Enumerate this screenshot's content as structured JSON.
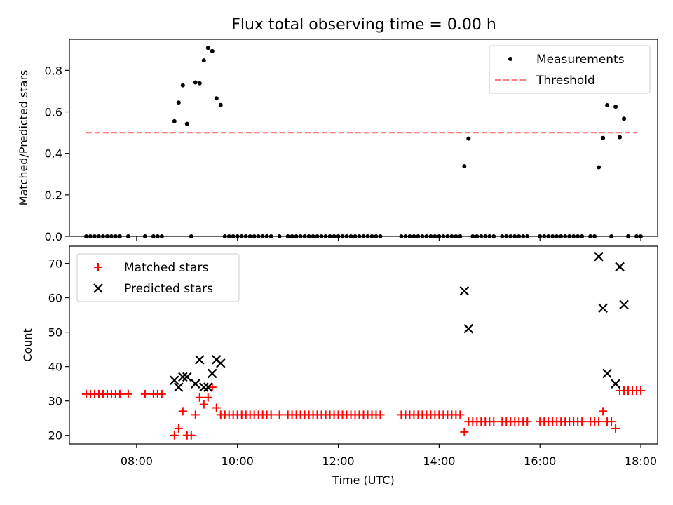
{
  "title": "Flux total observing time = 0.00 h",
  "chart_data": [
    {
      "type": "scatter",
      "panel": "top",
      "xlabel": "",
      "ylabel": "Matched/Predicted stars",
      "xlim": [
        "06:40",
        "18:20"
      ],
      "ylim": [
        0,
        0.95
      ],
      "yticks": [
        "0.0",
        "0.2",
        "0.4",
        "0.6",
        "0.8"
      ],
      "yticks_values": [
        0,
        0.2,
        0.4,
        0.6,
        0.8
      ],
      "legend_position": "top-right",
      "grid": false,
      "series": [
        {
          "name": "Measurements",
          "marker": "dot",
          "color": "#000000",
          "points": [
            [
              "07:00",
              0
            ],
            [
              "07:05",
              0
            ],
            [
              "07:10",
              0
            ],
            [
              "07:15",
              0
            ],
            [
              "07:20",
              0
            ],
            [
              "07:25",
              0
            ],
            [
              "07:30",
              0
            ],
            [
              "07:35",
              0
            ],
            [
              "07:40",
              0
            ],
            [
              "07:50",
              0
            ],
            [
              "08:10",
              0
            ],
            [
              "08:20",
              0
            ],
            [
              "08:25",
              0
            ],
            [
              "08:30",
              0
            ],
            [
              "08:45",
              0.555
            ],
            [
              "08:50",
              0.645
            ],
            [
              "08:55",
              0.728
            ],
            [
              "09:00",
              0.542
            ],
            [
              "09:05",
              0
            ],
            [
              "09:10",
              0.742
            ],
            [
              "09:15",
              0.738
            ],
            [
              "09:20",
              0.848
            ],
            [
              "09:25",
              0.908
            ],
            [
              "09:30",
              0.893
            ],
            [
              "09:35",
              0.665
            ],
            [
              "09:40",
              0.633
            ],
            [
              "09:45",
              0
            ],
            [
              "09:50",
              0
            ],
            [
              "09:55",
              0
            ],
            [
              "10:00",
              0
            ],
            [
              "10:05",
              0
            ],
            [
              "10:10",
              0
            ],
            [
              "10:15",
              0
            ],
            [
              "10:20",
              0
            ],
            [
              "10:25",
              0
            ],
            [
              "10:30",
              0
            ],
            [
              "10:35",
              0
            ],
            [
              "10:40",
              0
            ],
            [
              "10:50",
              0
            ],
            [
              "11:00",
              0
            ],
            [
              "11:05",
              0
            ],
            [
              "11:10",
              0
            ],
            [
              "11:15",
              0
            ],
            [
              "11:20",
              0
            ],
            [
              "11:25",
              0
            ],
            [
              "11:30",
              0
            ],
            [
              "11:35",
              0
            ],
            [
              "11:40",
              0
            ],
            [
              "11:45",
              0
            ],
            [
              "11:50",
              0
            ],
            [
              "11:55",
              0
            ],
            [
              "12:00",
              0
            ],
            [
              "12:05",
              0
            ],
            [
              "12:10",
              0
            ],
            [
              "12:15",
              0
            ],
            [
              "12:20",
              0
            ],
            [
              "12:25",
              0
            ],
            [
              "12:30",
              0
            ],
            [
              "12:35",
              0
            ],
            [
              "12:40",
              0
            ],
            [
              "12:45",
              0
            ],
            [
              "12:50",
              0
            ],
            [
              "13:15",
              0
            ],
            [
              "13:20",
              0
            ],
            [
              "13:25",
              0
            ],
            [
              "13:30",
              0
            ],
            [
              "13:35",
              0
            ],
            [
              "13:40",
              0
            ],
            [
              "13:45",
              0
            ],
            [
              "13:50",
              0
            ],
            [
              "13:55",
              0
            ],
            [
              "14:00",
              0
            ],
            [
              "14:05",
              0
            ],
            [
              "14:10",
              0
            ],
            [
              "14:15",
              0
            ],
            [
              "14:20",
              0
            ],
            [
              "14:25",
              0
            ],
            [
              "14:30",
              0.338
            ],
            [
              "14:35",
              0.471
            ],
            [
              "14:40",
              0
            ],
            [
              "14:45",
              0
            ],
            [
              "14:50",
              0
            ],
            [
              "14:55",
              0
            ],
            [
              "15:00",
              0
            ],
            [
              "15:05",
              0
            ],
            [
              "15:15",
              0
            ],
            [
              "15:20",
              0
            ],
            [
              "15:25",
              0
            ],
            [
              "15:30",
              0
            ],
            [
              "15:35",
              0
            ],
            [
              "15:40",
              0
            ],
            [
              "15:45",
              0
            ],
            [
              "16:00",
              0
            ],
            [
              "16:05",
              0
            ],
            [
              "16:10",
              0
            ],
            [
              "16:15",
              0
            ],
            [
              "16:20",
              0
            ],
            [
              "16:25",
              0
            ],
            [
              "16:30",
              0
            ],
            [
              "16:35",
              0
            ],
            [
              "16:40",
              0
            ],
            [
              "16:45",
              0
            ],
            [
              "16:50",
              0
            ],
            [
              "17:00",
              0
            ],
            [
              "17:05",
              0
            ],
            [
              "17:10",
              0.333
            ],
            [
              "17:15",
              0.474
            ],
            [
              "17:20",
              0.632
            ],
            [
              "17:25",
              0
            ],
            [
              "17:30",
              0.625
            ],
            [
              "17:35",
              0.478
            ],
            [
              "17:40",
              0.567
            ],
            [
              "17:45",
              0
            ],
            [
              "17:55",
              0
            ],
            [
              "18:00",
              0
            ]
          ]
        },
        {
          "name": "Threshold",
          "line": "dashed",
          "color": "#ff7f7f",
          "points": [
            [
              "07:00",
              0.5
            ],
            [
              "17:55",
              0.5
            ]
          ]
        }
      ]
    },
    {
      "type": "scatter",
      "panel": "bottom",
      "xlabel": "Time (UTC)",
      "ylabel": "Count",
      "xlim": [
        "06:40",
        "18:20"
      ],
      "xticks": [
        "08:00",
        "10:00",
        "12:00",
        "14:00",
        "16:00",
        "18:00"
      ],
      "ylim": [
        17.5,
        75
      ],
      "yticks": [
        "20",
        "30",
        "40",
        "50",
        "60",
        "70"
      ],
      "yticks_values": [
        20,
        30,
        40,
        50,
        60,
        70
      ],
      "legend_position": "top-left",
      "grid": false,
      "series": [
        {
          "name": "Matched stars",
          "marker": "plus",
          "color": "#ff0000",
          "points": [
            [
              "07:00",
              32
            ],
            [
              "07:05",
              32
            ],
            [
              "07:10",
              32
            ],
            [
              "07:15",
              32
            ],
            [
              "07:20",
              32
            ],
            [
              "07:25",
              32
            ],
            [
              "07:30",
              32
            ],
            [
              "07:35",
              32
            ],
            [
              "07:40",
              32
            ],
            [
              "07:50",
              32
            ],
            [
              "08:10",
              32
            ],
            [
              "08:20",
              32
            ],
            [
              "08:25",
              32
            ],
            [
              "08:30",
              32
            ],
            [
              "08:45",
              20
            ],
            [
              "08:50",
              22
            ],
            [
              "08:55",
              27
            ],
            [
              "09:00",
              20
            ],
            [
              "09:05",
              20
            ],
            [
              "09:10",
              26
            ],
            [
              "09:15",
              31
            ],
            [
              "09:20",
              29
            ],
            [
              "09:25",
              31
            ],
            [
              "09:30",
              34
            ],
            [
              "09:35",
              28
            ],
            [
              "09:40",
              26
            ],
            [
              "09:45",
              26
            ],
            [
              "09:50",
              26
            ],
            [
              "09:55",
              26
            ],
            [
              "10:00",
              26
            ],
            [
              "10:05",
              26
            ],
            [
              "10:10",
              26
            ],
            [
              "10:15",
              26
            ],
            [
              "10:20",
              26
            ],
            [
              "10:25",
              26
            ],
            [
              "10:30",
              26
            ],
            [
              "10:35",
              26
            ],
            [
              "10:40",
              26
            ],
            [
              "10:50",
              26
            ],
            [
              "11:00",
              26
            ],
            [
              "11:05",
              26
            ],
            [
              "11:10",
              26
            ],
            [
              "11:15",
              26
            ],
            [
              "11:20",
              26
            ],
            [
              "11:25",
              26
            ],
            [
              "11:30",
              26
            ],
            [
              "11:35",
              26
            ],
            [
              "11:40",
              26
            ],
            [
              "11:45",
              26
            ],
            [
              "11:50",
              26
            ],
            [
              "11:55",
              26
            ],
            [
              "12:00",
              26
            ],
            [
              "12:05",
              26
            ],
            [
              "12:10",
              26
            ],
            [
              "12:15",
              26
            ],
            [
              "12:20",
              26
            ],
            [
              "12:25",
              26
            ],
            [
              "12:30",
              26
            ],
            [
              "12:35",
              26
            ],
            [
              "12:40",
              26
            ],
            [
              "12:45",
              26
            ],
            [
              "12:50",
              26
            ],
            [
              "13:15",
              26
            ],
            [
              "13:20",
              26
            ],
            [
              "13:25",
              26
            ],
            [
              "13:30",
              26
            ],
            [
              "13:35",
              26
            ],
            [
              "13:40",
              26
            ],
            [
              "13:45",
              26
            ],
            [
              "13:50",
              26
            ],
            [
              "13:55",
              26
            ],
            [
              "14:00",
              26
            ],
            [
              "14:05",
              26
            ],
            [
              "14:10",
              26
            ],
            [
              "14:15",
              26
            ],
            [
              "14:20",
              26
            ],
            [
              "14:25",
              26
            ],
            [
              "14:30",
              21
            ],
            [
              "14:35",
              24
            ],
            [
              "14:40",
              24
            ],
            [
              "14:45",
              24
            ],
            [
              "14:50",
              24
            ],
            [
              "14:55",
              24
            ],
            [
              "15:00",
              24
            ],
            [
              "15:05",
              24
            ],
            [
              "15:15",
              24
            ],
            [
              "15:20",
              24
            ],
            [
              "15:25",
              24
            ],
            [
              "15:30",
              24
            ],
            [
              "15:35",
              24
            ],
            [
              "15:40",
              24
            ],
            [
              "15:45",
              24
            ],
            [
              "16:00",
              24
            ],
            [
              "16:05",
              24
            ],
            [
              "16:10",
              24
            ],
            [
              "16:15",
              24
            ],
            [
              "16:20",
              24
            ],
            [
              "16:25",
              24
            ],
            [
              "16:30",
              24
            ],
            [
              "16:35",
              24
            ],
            [
              "16:40",
              24
            ],
            [
              "16:45",
              24
            ],
            [
              "16:50",
              24
            ],
            [
              "17:00",
              24
            ],
            [
              "17:05",
              24
            ],
            [
              "17:10",
              24
            ],
            [
              "17:15",
              27
            ],
            [
              "17:20",
              24
            ],
            [
              "17:25",
              24
            ],
            [
              "17:30",
              22
            ],
            [
              "17:35",
              33
            ],
            [
              "17:40",
              33
            ],
            [
              "17:45",
              33
            ],
            [
              "17:50",
              33
            ],
            [
              "17:55",
              33
            ],
            [
              "18:00",
              33
            ]
          ]
        },
        {
          "name": "Predicted stars",
          "marker": "x",
          "color": "#000000",
          "points": [
            [
              "08:45",
              36
            ],
            [
              "08:50",
              34
            ],
            [
              "08:55",
              37
            ],
            [
              "09:00",
              37
            ],
            [
              "09:10",
              35
            ],
            [
              "09:15",
              42
            ],
            [
              "09:20",
              34
            ],
            [
              "09:25",
              34
            ],
            [
              "09:30",
              38
            ],
            [
              "09:35",
              42
            ],
            [
              "09:40",
              41
            ],
            [
              "14:30",
              62
            ],
            [
              "14:35",
              51
            ],
            [
              "17:10",
              72
            ],
            [
              "17:15",
              57
            ],
            [
              "17:20",
              38
            ],
            [
              "17:30",
              35
            ],
            [
              "17:35",
              69
            ],
            [
              "17:40",
              58
            ]
          ]
        }
      ]
    }
  ]
}
